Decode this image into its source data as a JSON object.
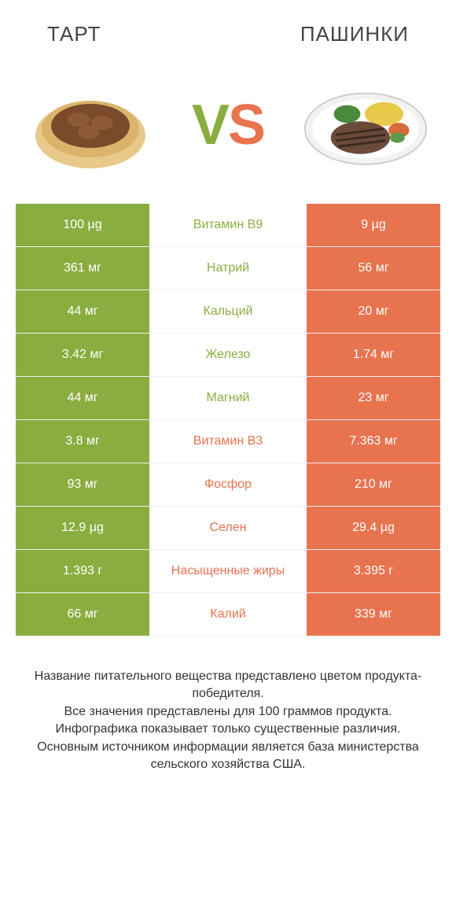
{
  "colors": {
    "green_bg": "#8aad3f",
    "green_text": "#8aad3f",
    "orange_bg": "#e8734f",
    "orange_text": "#e8734f",
    "white": "#ffffff",
    "mid_bg": "#ffffff",
    "header_text": "#444444",
    "footer_text": "#333333"
  },
  "header": {
    "left": "ТАРТ",
    "right": "ПАШИНКИ"
  },
  "vs": {
    "v": "V",
    "s": "S"
  },
  "rows": [
    {
      "left": "100 µg",
      "mid": "Витамин B9",
      "right": "9 µg",
      "winner": "left"
    },
    {
      "left": "361 мг",
      "mid": "Натрий",
      "right": "56 мг",
      "winner": "left"
    },
    {
      "left": "44 мг",
      "mid": "Кальций",
      "right": "20 мг",
      "winner": "left"
    },
    {
      "left": "3.42 мг",
      "mid": "Железо",
      "right": "1.74 мг",
      "winner": "left"
    },
    {
      "left": "44 мг",
      "mid": "Магний",
      "right": "23 мг",
      "winner": "left"
    },
    {
      "left": "3.8 мг",
      "mid": "Витамин B3",
      "right": "7.363 мг",
      "winner": "right"
    },
    {
      "left": "93 мг",
      "mid": "Фосфор",
      "right": "210 мг",
      "winner": "right"
    },
    {
      "left": "12.9 µg",
      "mid": "Селен",
      "right": "29.4 µg",
      "winner": "right"
    },
    {
      "left": "1.393 г",
      "mid": "Насыщенные жиры",
      "right": "3.395 г",
      "winner": "right"
    },
    {
      "left": "66 мг",
      "mid": "Калий",
      "right": "339 мг",
      "winner": "right"
    }
  ],
  "footer": [
    "Название питательного вещества представлено цветом продукта-победителя.",
    "Все значения представлены для 100 граммов продукта.",
    "Инфографика показывает только существенные различия.",
    "Основным источником информации является база министерства сельского хозяйства США."
  ]
}
